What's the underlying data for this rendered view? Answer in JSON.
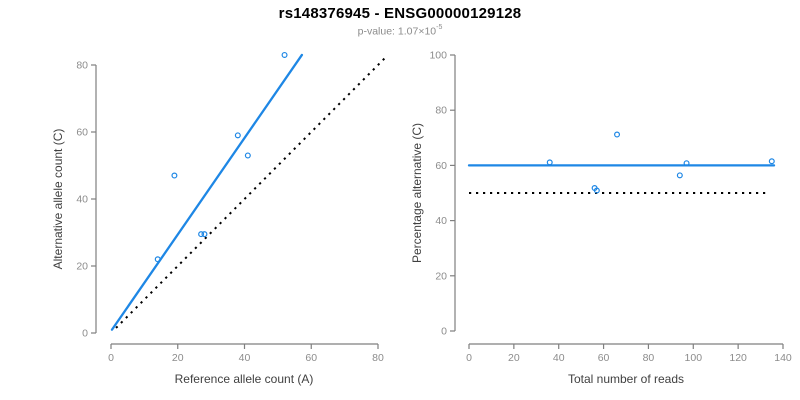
{
  "header": {
    "title": "rs148376945 - ENSG00000129128",
    "subtitle_prefix": "p-value: ",
    "subtitle_mantissa": "1.07×10",
    "subtitle_exponent": "-5"
  },
  "colors": {
    "fit_blue": "#1e87e5",
    "reference_black": "#000000",
    "axis_line": "#7f7f7f",
    "tick_label": "#8c8c8c",
    "axis_title": "#404040",
    "background": "#ffffff"
  },
  "chart_data": [
    {
      "type": "scatter",
      "name": "allele-counts",
      "xlabel": "Reference allele count (A)",
      "ylabel": "Alternative allele count (C)",
      "xlim": [
        0,
        80
      ],
      "ylim": [
        0,
        80
      ],
      "xticks": [
        0,
        20,
        40,
        60,
        80
      ],
      "yticks": [
        0,
        20,
        40,
        60,
        80
      ],
      "grid": false,
      "points": [
        [
          14,
          22
        ],
        [
          19,
          47
        ],
        [
          27,
          29.5
        ],
        [
          28,
          29.5
        ],
        [
          38,
          59
        ],
        [
          41,
          53
        ],
        [
          52,
          83
        ]
      ],
      "fit_line": {
        "x1": 0.3,
        "y1": 1,
        "x2": 57.2,
        "y2": 83,
        "style": "solid"
      },
      "reference_line": {
        "x1": 1.5,
        "y1": 1.5,
        "x2": 82.5,
        "y2": 82.5,
        "style": "dotted",
        "meaning": "identity y=x"
      }
    },
    {
      "type": "scatter",
      "name": "percentage-vs-coverage",
      "xlabel": "Total number of reads",
      "ylabel": "Percentage alternative (C)",
      "xlim": [
        0,
        140
      ],
      "ylim": [
        0,
        100
      ],
      "xticks": [
        0,
        20,
        40,
        60,
        80,
        100,
        120,
        140
      ],
      "yticks": [
        0,
        20,
        40,
        60,
        80,
        100
      ],
      "grid": false,
      "points": [
        [
          36,
          61.1
        ],
        [
          56,
          51.8
        ],
        [
          57,
          50.9
        ],
        [
          66,
          71.2
        ],
        [
          94,
          56.4
        ],
        [
          97,
          60.8
        ],
        [
          135,
          61.5
        ]
      ],
      "fit_line": {
        "x1": 0,
        "y1": 60,
        "x2": 136,
        "y2": 60,
        "style": "solid"
      },
      "reference_line": {
        "x1": 0,
        "y1": 50,
        "x2": 134,
        "y2": 50,
        "style": "dotted",
        "meaning": "null 50%"
      }
    }
  ]
}
